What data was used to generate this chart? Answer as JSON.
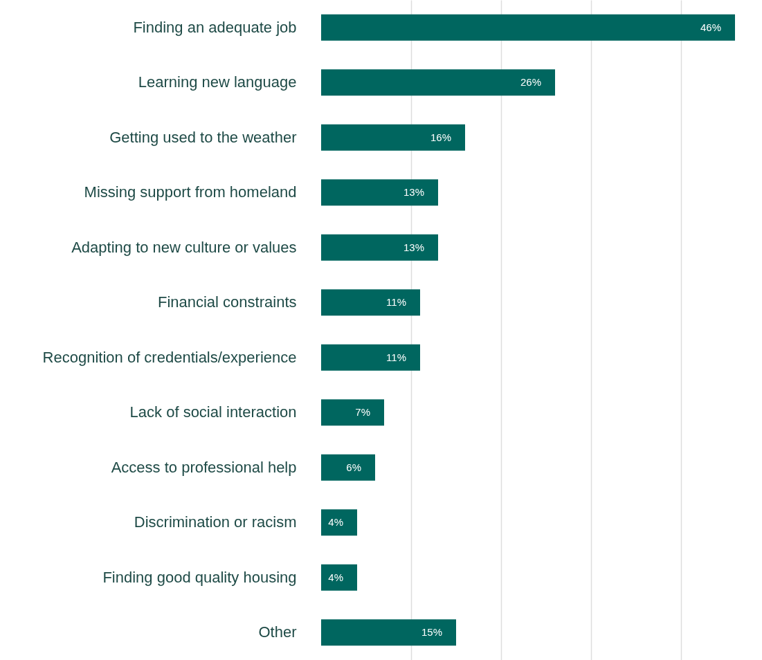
{
  "chart_data": {
    "type": "bar",
    "orientation": "horizontal",
    "categories": [
      "Finding an adequate job",
      "Learning new language",
      "Getting used to the weather",
      "Missing support from homeland",
      "Adapting to new culture or values",
      "Financial constraints",
      "Recognition of credentials/experience",
      "Lack of social interaction",
      "Access to professional help",
      "Discrimination or racism",
      "Finding good quality housing",
      "Other"
    ],
    "values": [
      46,
      26,
      16,
      13,
      13,
      11,
      11,
      7,
      6,
      4,
      4,
      15
    ],
    "value_labels": [
      "46%",
      "26%",
      "16%",
      "13%",
      "13%",
      "11%",
      "11%",
      "7%",
      "6%",
      "4%",
      "4%",
      "15%"
    ],
    "color": "#00665f",
    "xlim": [
      0,
      49
    ],
    "xticks": [
      {
        "value": 10,
        "label": null
      },
      {
        "value": 20,
        "label": null
      },
      {
        "value": 30,
        "label": null
      },
      {
        "value": 40,
        "label": null
      }
    ],
    "grid": "x",
    "tick_labels": "y"
  }
}
